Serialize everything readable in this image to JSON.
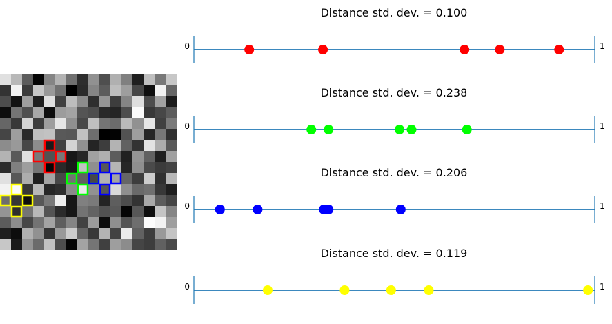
{
  "colors": {
    "axis_line": "#1f77b4",
    "end_tick": "#1f77b4",
    "highlight": [
      "#ff0000",
      "#00ff00",
      "#0000ff",
      "#ffff00"
    ]
  },
  "image_panel": {
    "type": "heatmap",
    "colormap": "gray",
    "rows": 16,
    "cols": 16,
    "values": [
      [
        0.88,
        0.72,
        0.36,
        0.02,
        0.52,
        0.7,
        0.44,
        0.18,
        0.57,
        0.31,
        0.69,
        0.5,
        0.12,
        0.75,
        0.47,
        0.78
      ],
      [
        0.2,
        0.95,
        0.23,
        0.78,
        0.6,
        0.44,
        0.0,
        0.17,
        0.52,
        0.36,
        0.74,
        0.62,
        0.28,
        0.06,
        0.95,
        0.4
      ],
      [
        0.3,
        0.07,
        0.62,
        0.12,
        0.88,
        0.25,
        0.74,
        0.55,
        0.18,
        0.59,
        0.24,
        0.52,
        0.87,
        0.3,
        0.63,
        0.11
      ],
      [
        0.05,
        0.46,
        0.31,
        0.66,
        0.05,
        0.61,
        0.64,
        0.33,
        0.3,
        0.16,
        0.14,
        0.3,
        0.98,
        0.22,
        0.28,
        0.36
      ],
      [
        0.4,
        0.22,
        0.83,
        0.24,
        0.62,
        0.9,
        0.56,
        0.28,
        0.75,
        0.46,
        0.42,
        0.73,
        0.57,
        0.9,
        0.25,
        0.48
      ],
      [
        0.27,
        0.62,
        0.16,
        0.75,
        0.76,
        0.35,
        0.34,
        0.76,
        0.43,
        0.0,
        0.01,
        0.32,
        0.62,
        0.15,
        0.47,
        0.19
      ],
      [
        0.55,
        0.6,
        0.28,
        0.55,
        0.1,
        0.25,
        0.83,
        0.57,
        0.14,
        0.24,
        0.7,
        0.38,
        0.2,
        0.89,
        0.68,
        0.35
      ],
      [
        0.7,
        0.35,
        0.88,
        0.48,
        0.32,
        0.47,
        0.09,
        0.15,
        0.63,
        0.69,
        0.36,
        0.13,
        0.58,
        0.38,
        0.12,
        0.63
      ],
      [
        0.17,
        0.5,
        0.62,
        0.46,
        0.02,
        0.16,
        0.1,
        0.76,
        0.56,
        0.34,
        0.71,
        0.15,
        0.56,
        0.29,
        0.23,
        0.26
      ],
      [
        0.88,
        0.34,
        0.68,
        0.12,
        0.64,
        0.28,
        0.45,
        0.38,
        0.28,
        0.7,
        0.64,
        0.4,
        0.24,
        0.8,
        0.19,
        0.72
      ],
      [
        0.95,
        0.98,
        0.21,
        0.72,
        0.15,
        0.18,
        0.54,
        0.92,
        0.57,
        0.34,
        0.85,
        0.56,
        0.41,
        0.44,
        0.22,
        0.12
      ],
      [
        0.43,
        0.21,
        0.06,
        0.34,
        0.47,
        0.93,
        0.09,
        0.5,
        0.48,
        0.14,
        0.37,
        0.3,
        0.2,
        0.66,
        0.36,
        0.27
      ],
      [
        0.58,
        0.18,
        0.46,
        0.72,
        0.33,
        0.17,
        0.09,
        0.45,
        0.39,
        0.32,
        0.35,
        0.02,
        0.34,
        0.06,
        0.77,
        0.52
      ],
      [
        0.36,
        0.55,
        0.28,
        0.45,
        0.64,
        0.37,
        0.52,
        0.26,
        0.61,
        0.05,
        0.56,
        0.33,
        0.43,
        0.99,
        0.95,
        0.62
      ],
      [
        0.12,
        0.05,
        0.69,
        0.57,
        0.2,
        0.6,
        0.8,
        0.4,
        0.22,
        0.7,
        0.26,
        0.92,
        0.38,
        0.24,
        0.6,
        0.77
      ],
      [
        0.78,
        0.1,
        0.58,
        0.42,
        0.76,
        0.3,
        0.02,
        0.64,
        0.46,
        0.25,
        0.62,
        0.55,
        0.27,
        0.24,
        0.38,
        0.29
      ]
    ],
    "crosses": [
      {
        "color": "red",
        "row": 7,
        "col": 4
      },
      {
        "color": "green",
        "row": 9,
        "col": 7
      },
      {
        "color": "blue",
        "row": 9,
        "col": 9
      },
      {
        "color": "yellow",
        "row": 11,
        "col": 1
      }
    ]
  },
  "chart_data": [
    {
      "type": "scatter",
      "title": "Distance std. dev. = 0.100",
      "xlim": [
        0,
        1
      ],
      "end_labels": [
        "0",
        "1"
      ],
      "color": "#ff0000",
      "x": [
        0.138,
        0.322,
        0.675,
        0.763,
        0.911
      ]
    },
    {
      "type": "scatter",
      "title": "Distance std. dev. = 0.238",
      "xlim": [
        0,
        1
      ],
      "end_labels": [
        "0",
        "1"
      ],
      "color": "#00ff00",
      "x": [
        0.293,
        0.336,
        0.513,
        0.543,
        0.681
      ]
    },
    {
      "type": "scatter",
      "title": "Distance std. dev. = 0.206",
      "xlim": [
        0,
        1
      ],
      "end_labels": [
        "0",
        "1"
      ],
      "color": "#0000ff",
      "x": [
        0.065,
        0.159,
        0.324,
        0.336,
        0.516
      ]
    },
    {
      "type": "scatter",
      "title": "Distance std. dev. = 0.119",
      "xlim": [
        0,
        1
      ],
      "end_labels": [
        "0",
        "1"
      ],
      "color": "#ffff00",
      "x": [
        0.184,
        0.376,
        0.492,
        0.586,
        0.983
      ]
    }
  ]
}
